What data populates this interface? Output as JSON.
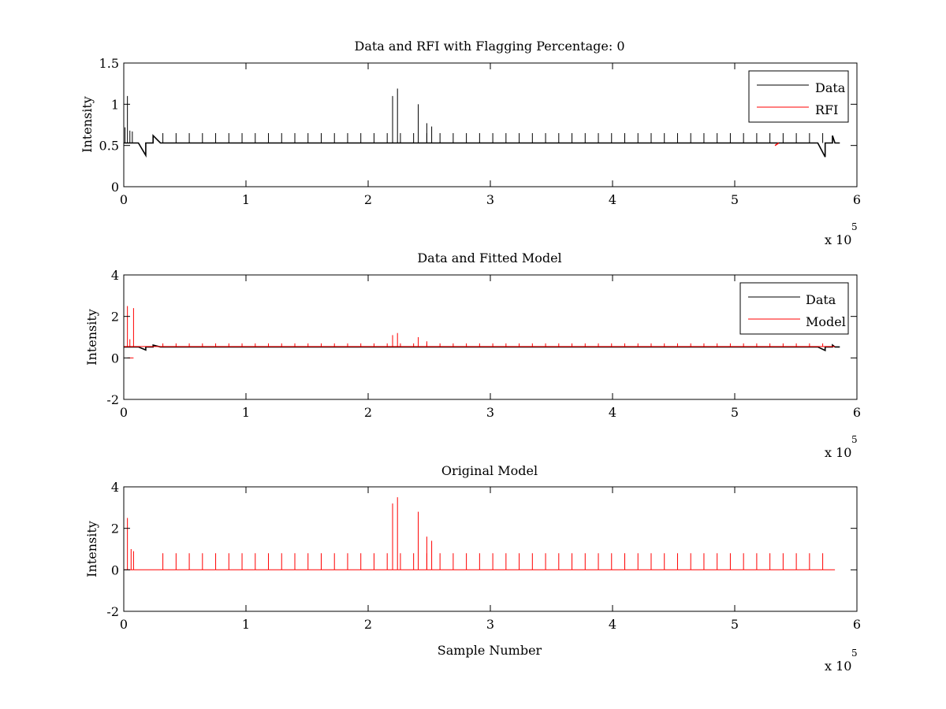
{
  "chart_data": [
    {
      "type": "line",
      "title": "Data and RFI with Flagging Percentage: 0",
      "xlabel": "",
      "ylabel": "Intensity",
      "xlim": [
        0,
        600000
      ],
      "ylim": [
        0,
        1.5
      ],
      "xticks": [
        "0",
        "1",
        "2",
        "3",
        "4",
        "5",
        "6"
      ],
      "yticks": [
        "0",
        "0.5",
        "1",
        "1.5"
      ],
      "x_multiplier": {
        "base": "x 10",
        "exponent": "5"
      },
      "legend": {
        "placement": "top-right",
        "entries": [
          "Data",
          "RFI"
        ]
      },
      "series": [
        {
          "name": "Data",
          "color": "#000000",
          "baseline": 0.53,
          "x_end": 582000,
          "spikes": [
            [
              1000,
              0.72
            ],
            [
              3000,
              1.1
            ],
            [
              5000,
              0.68
            ],
            [
              7000,
              0.67
            ],
            [
              220000,
              1.1
            ],
            [
              224000,
              1.19
            ],
            [
              241000,
              1.0
            ],
            [
              248000,
              0.77
            ],
            [
              252000,
              0.73
            ]
          ],
          "regular_spikes": {
            "start": 32000,
            "step": 10800,
            "end": 572000,
            "value": 0.65
          },
          "dips": [
            [
              18000,
              0.38
            ],
            [
              574000,
              0.36
            ]
          ],
          "peaks": [
            [
              24000,
              0.62
            ],
            [
              580000,
              0.62
            ]
          ]
        },
        {
          "name": "RFI",
          "color": "#ff0000",
          "points": [
            [
              533000,
              0.5
            ],
            [
              536000,
              0.53
            ]
          ]
        }
      ]
    },
    {
      "type": "line",
      "title": "Data and Fitted Model",
      "xlabel": "",
      "ylabel": "Intensity",
      "xlim": [
        0,
        600000
      ],
      "ylim": [
        -2,
        4
      ],
      "xticks": [
        "0",
        "1",
        "2",
        "3",
        "4",
        "5",
        "6"
      ],
      "yticks": [
        "-2",
        "0",
        "2",
        "4"
      ],
      "x_multiplier": {
        "base": "x 10",
        "exponent": "5"
      },
      "legend": {
        "placement": "top-right",
        "entries": [
          "Data",
          "Model"
        ]
      },
      "series": [
        {
          "name": "Data",
          "color": "#000000",
          "baseline": 0.53,
          "x_end": 582000,
          "dips": [
            [
              18000,
              0.38
            ],
            [
              574000,
              0.36
            ]
          ],
          "peaks": [
            [
              24000,
              0.62
            ],
            [
              580000,
              0.62
            ]
          ]
        },
        {
          "name": "Model",
          "color": "#ff0000",
          "baseline": 0.55,
          "x_end": 582000,
          "spikes": [
            [
              3000,
              2.5
            ],
            [
              5000,
              0.9
            ],
            [
              8000,
              2.4
            ],
            [
              220000,
              1.1
            ],
            [
              224000,
              1.2
            ],
            [
              241000,
              1.0
            ],
            [
              248000,
              0.8
            ]
          ],
          "regular_spikes": {
            "start": 32000,
            "step": 10800,
            "end": 572000,
            "value": 0.7
          },
          "zero_segment": [
            [
              3000,
              0
            ],
            [
              8000,
              0
            ]
          ]
        }
      ]
    },
    {
      "type": "line",
      "title": "Original Model",
      "xlabel": "Sample Number",
      "ylabel": "Intensity",
      "xlim": [
        0,
        600000
      ],
      "ylim": [
        -2,
        4
      ],
      "xticks": [
        "0",
        "1",
        "2",
        "3",
        "4",
        "5",
        "6"
      ],
      "yticks": [
        "-2",
        "0",
        "2",
        "4"
      ],
      "x_multiplier": {
        "base": "x 10",
        "exponent": "5"
      },
      "series": [
        {
          "name": "",
          "color": "#ff0000",
          "baseline": 0.0,
          "x_end": 582000,
          "spikes": [
            [
              3000,
              2.5
            ],
            [
              6000,
              1.0
            ],
            [
              8000,
              0.9
            ],
            [
              220000,
              3.2
            ],
            [
              224000,
              3.5
            ],
            [
              241000,
              2.8
            ],
            [
              248000,
              1.6
            ],
            [
              252000,
              1.4
            ]
          ],
          "regular_spikes": {
            "start": 32000,
            "step": 10800,
            "end": 572000,
            "value": 0.8
          }
        }
      ]
    }
  ]
}
